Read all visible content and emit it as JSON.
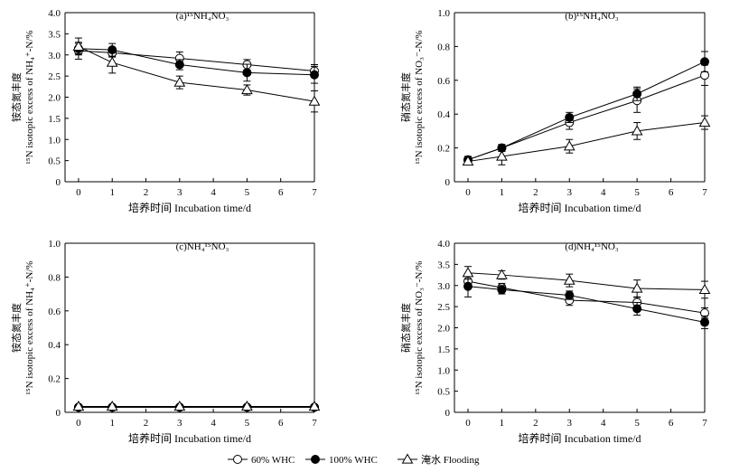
{
  "legend": [
    {
      "label": "60% WHC",
      "marker": "open-circle"
    },
    {
      "label": "100% WHC",
      "marker": "filled-circle"
    },
    {
      "label": "淹水 Flooding",
      "marker": "open-triangle"
    }
  ],
  "chart_data": [
    {
      "type": "line",
      "title": "(a)¹⁵NH₄NO₃",
      "xlabel": "培养时间 Incubation time/d",
      "ylabel_cn": "铵态氮丰度",
      "ylabel_en": "¹⁵N isotopic excess of NH₄⁺-N/%",
      "x": [
        0,
        1,
        3,
        5,
        7
      ],
      "xticks": [
        0,
        1,
        2,
        3,
        4,
        5,
        6,
        7
      ],
      "xlim": [
        -0.4,
        7
      ],
      "ylim": [
        0,
        4
      ],
      "yticks": [
        "0",
        "0.5",
        "1.0",
        "1.5",
        "2.0",
        "2.5",
        "3.0",
        "3.5",
        "4.0"
      ],
      "series": [
        {
          "name": "60% WHC",
          "marker": "open-circle",
          "values": [
            3.1,
            3.05,
            2.92,
            2.77,
            2.62
          ],
          "err": [
            0.2,
            0.1,
            0.15,
            0.12,
            0.15
          ]
        },
        {
          "name": "100% WHC",
          "marker": "filled-circle",
          "values": [
            3.15,
            3.12,
            2.77,
            2.58,
            2.53
          ],
          "err": [
            0.12,
            0.15,
            0.12,
            0.2,
            0.2
          ]
        },
        {
          "name": "淹水 Flooding",
          "marker": "open-triangle",
          "values": [
            3.2,
            2.82,
            2.35,
            2.17,
            1.9
          ],
          "err": [
            0.2,
            0.25,
            0.15,
            0.12,
            0.25
          ]
        }
      ]
    },
    {
      "type": "line",
      "title": "(b)¹⁵NH₄NO₃",
      "xlabel": "培养时间 Incubation time/d",
      "ylabel_cn": "硝态氮丰度",
      "ylabel_en": "¹⁵N isotopic excess of NO₃⁻-N/%",
      "x": [
        0,
        1,
        3,
        5,
        7
      ],
      "xticks": [
        0,
        1,
        2,
        3,
        4,
        5,
        6,
        7
      ],
      "xlim": [
        -0.4,
        7
      ],
      "ylim": [
        0,
        1.0
      ],
      "yticks": [
        "0",
        "0.2",
        "0.4",
        "0.6",
        "0.8",
        "1.0"
      ],
      "series": [
        {
          "name": "60% WHC",
          "marker": "open-circle",
          "values": [
            0.13,
            0.2,
            0.35,
            0.48,
            0.63
          ],
          "err": [
            0.02,
            0.02,
            0.04,
            0.07,
            0.06
          ]
        },
        {
          "name": "100% WHC",
          "marker": "filled-circle",
          "values": [
            0.13,
            0.2,
            0.38,
            0.52,
            0.71
          ],
          "err": [
            0.02,
            0.02,
            0.03,
            0.04,
            0.06
          ]
        },
        {
          "name": "淹水 Flooding",
          "marker": "open-triangle",
          "values": [
            0.12,
            0.15,
            0.21,
            0.3,
            0.35
          ],
          "err": [
            0.02,
            0.05,
            0.04,
            0.05,
            0.04
          ]
        }
      ]
    },
    {
      "type": "line",
      "title": "(c)NH₄¹⁵NO₃",
      "xlabel": "培养时间 Incubation time/d",
      "ylabel_cn": "铵态氮丰度",
      "ylabel_en": "¹⁵N isotopic excess of NH₄⁺-N/%",
      "x": [
        0,
        1,
        3,
        5,
        7
      ],
      "xticks": [
        0,
        1,
        2,
        3,
        4,
        5,
        6,
        7
      ],
      "xlim": [
        -0.4,
        7
      ],
      "ylim": [
        0,
        1.0
      ],
      "yticks": [
        "0",
        "0.2",
        "0.4",
        "0.6",
        "0.8",
        "1.0"
      ],
      "series": [
        {
          "name": "60% WHC",
          "marker": "open-circle",
          "values": [
            0.03,
            0.03,
            0.03,
            0.03,
            0.03
          ],
          "err": [
            0.005,
            0.005,
            0.005,
            0.005,
            0.005
          ]
        },
        {
          "name": "100% WHC",
          "marker": "filled-circle",
          "values": [
            0.03,
            0.03,
            0.03,
            0.03,
            0.03
          ],
          "err": [
            0.005,
            0.005,
            0.005,
            0.005,
            0.005
          ]
        },
        {
          "name": "淹水 Flooding",
          "marker": "open-triangle",
          "values": [
            0.035,
            0.035,
            0.035,
            0.035,
            0.035
          ],
          "err": [
            0.005,
            0.005,
            0.005,
            0.005,
            0.005
          ]
        }
      ]
    },
    {
      "type": "line",
      "title": "(d)NH₄¹⁵NO₃",
      "xlabel": "培养时间 Incubation time/d",
      "ylabel_cn": "硝态氮丰度",
      "ylabel_en": "¹⁵N isotopic excess of NO₃⁻-N/%",
      "x": [
        0,
        1,
        3,
        5,
        7
      ],
      "xticks": [
        0,
        1,
        2,
        3,
        4,
        5,
        6,
        7
      ],
      "xlim": [
        -0.4,
        7
      ],
      "ylim": [
        0,
        4
      ],
      "yticks": [
        "0",
        "0.5",
        "1.0",
        "1.5",
        "2.0",
        "2.5",
        "3.0",
        "3.5",
        "4.0"
      ],
      "series": [
        {
          "name": "60% WHC",
          "marker": "open-circle",
          "values": [
            3.1,
            2.95,
            2.65,
            2.6,
            2.35
          ],
          "err": [
            0.15,
            0.1,
            0.12,
            0.12,
            0.12
          ]
        },
        {
          "name": "100% WHC",
          "marker": "filled-circle",
          "values": [
            2.98,
            2.9,
            2.77,
            2.45,
            2.13
          ],
          "err": [
            0.25,
            0.1,
            0.1,
            0.15,
            0.15
          ]
        },
        {
          "name": "淹水 Flooding",
          "marker": "open-triangle",
          "values": [
            3.3,
            3.25,
            3.12,
            2.93,
            2.9
          ],
          "err": [
            0.15,
            0.1,
            0.15,
            0.2,
            0.2
          ]
        }
      ]
    }
  ]
}
